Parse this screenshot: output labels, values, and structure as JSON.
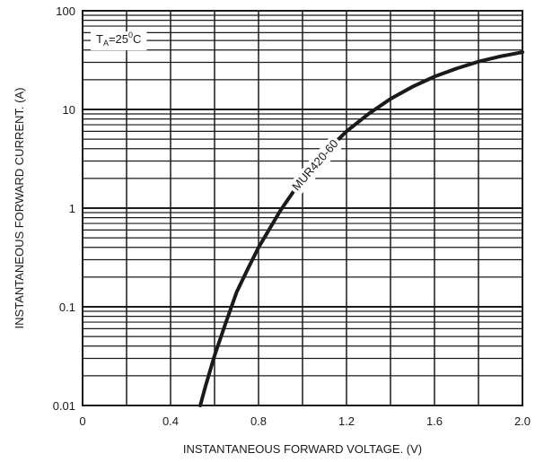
{
  "chart_data": {
    "type": "line",
    "title": "",
    "xlabel": "INSTANTANEOUS FORWARD VOLTAGE. (V)",
    "ylabel": "INSTANTANEOUS FORWARD CURRENT. (A)",
    "xlim": [
      0,
      2.0
    ],
    "ylim": [
      0.01,
      100
    ],
    "yscale": "log",
    "grid": true,
    "x_ticks": [
      "0",
      "0.4",
      "0.8",
      "1.2",
      "1.6",
      "2.0"
    ],
    "y_ticks": [
      "0.01",
      "0.1",
      "1",
      "10",
      "100"
    ],
    "condition": {
      "prefix": "T",
      "subscript": "A",
      "value": "=25",
      "superscript": "0",
      "unit": "C"
    },
    "series": [
      {
        "name": "MUR420-60",
        "x": [
          0.535,
          0.56,
          0.6,
          0.65,
          0.7,
          0.75,
          0.8,
          0.9,
          1.0,
          1.1,
          1.2,
          1.3,
          1.4,
          1.5,
          1.6,
          1.7,
          1.8,
          1.9,
          2.0
        ],
        "y": [
          0.01,
          0.016,
          0.032,
          0.068,
          0.14,
          0.24,
          0.4,
          0.95,
          2.0,
          3.6,
          6.0,
          9.0,
          12.8,
          17.0,
          21.5,
          26.0,
          30.5,
          34.5,
          38.0
        ]
      }
    ]
  }
}
